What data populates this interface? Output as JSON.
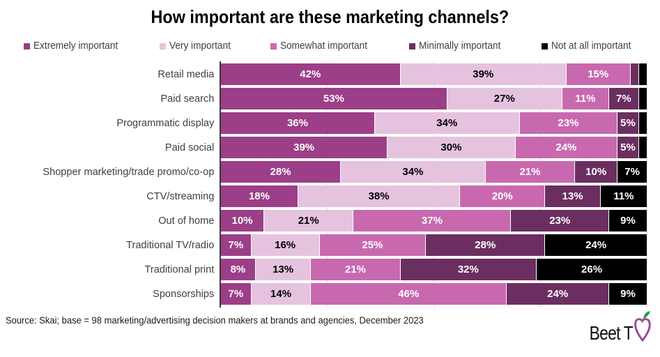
{
  "title": "How important are these marketing channels?",
  "source": "Source: Skai; base = 98 marketing/advertising decision makers at brands and agencies, December 2023",
  "logo": {
    "text": "Beet T",
    "beet_purple": "#9B4E97",
    "leaf_green": "#27A348"
  },
  "chart_data": {
    "type": "bar",
    "stacked": true,
    "orientation": "horizontal",
    "title": "How important are these marketing channels?",
    "xlabel": "",
    "ylabel": "",
    "xlim": [
      0,
      100
    ],
    "gridlines_pct": [
      25,
      50,
      75,
      100
    ],
    "grid_color": "#d9d9d9",
    "axis_color": "#3a3a3a",
    "legend_position": "top",
    "label_min_pct": 5,
    "categories": [
      "Retail media",
      "Paid search",
      "Programmatic display",
      "Paid social",
      "Shopper marketing/trade promo/co-op",
      "CTV/streaming",
      "Out of home",
      "Traditional TV/radio",
      "Traditional print",
      "Sponsorships"
    ],
    "series": [
      {
        "name": "Extremely important",
        "color": "#9C3E88",
        "label_color": "#ffffff",
        "values": [
          42,
          53,
          36,
          39,
          28,
          18,
          10,
          7,
          8,
          7
        ]
      },
      {
        "name": "Very important",
        "color": "#E5C3DF",
        "label_color": "#000000",
        "values": [
          39,
          27,
          34,
          30,
          34,
          38,
          21,
          16,
          13,
          14
        ]
      },
      {
        "name": "Somewhat important",
        "color": "#C869B0",
        "label_color": "#ffffff",
        "values": [
          15,
          11,
          23,
          24,
          21,
          20,
          37,
          25,
          21,
          46
        ]
      },
      {
        "name": "Minimally important",
        "color": "#6B2E60",
        "label_color": "#ffffff",
        "values": [
          2,
          7,
          5,
          5,
          10,
          13,
          23,
          28,
          32,
          24
        ]
      },
      {
        "name": "Not at all important",
        "color": "#000000",
        "label_color": "#ffffff",
        "values": [
          2,
          2,
          2,
          2,
          7,
          11,
          9,
          24,
          26,
          9
        ]
      }
    ]
  }
}
